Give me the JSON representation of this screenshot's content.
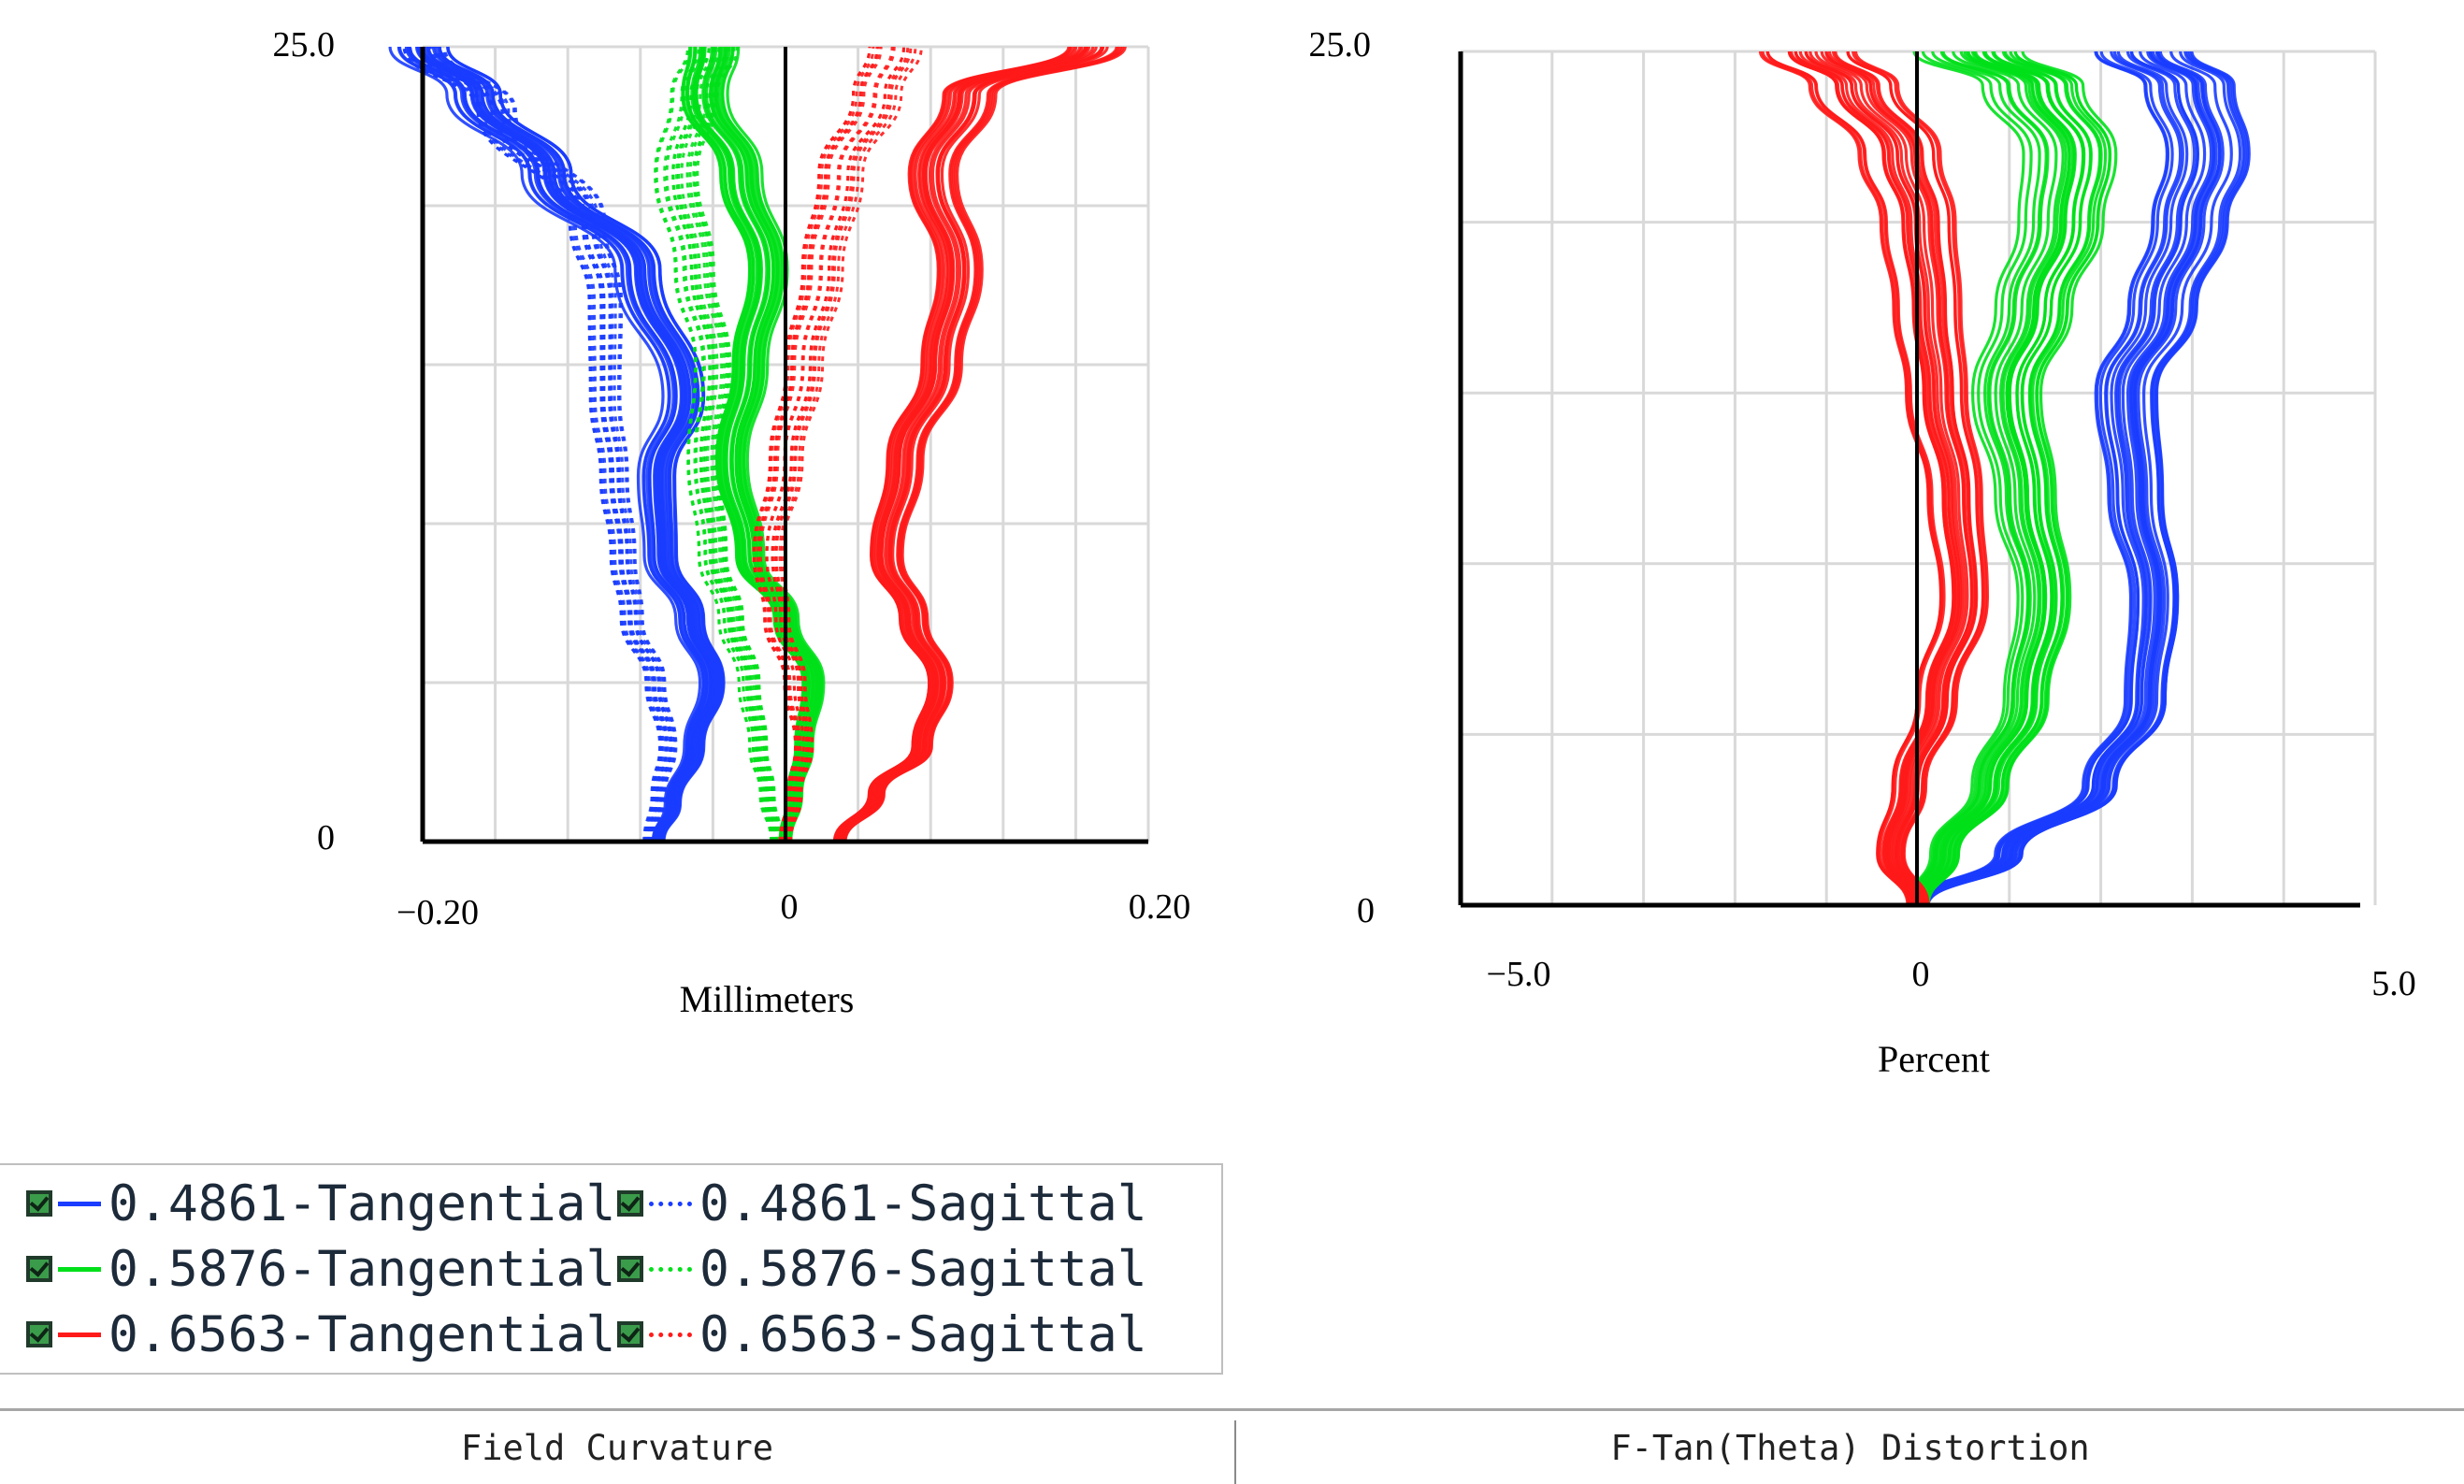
{
  "chart_data": [
    {
      "type": "line",
      "title": "",
      "xlabel": "Millimeters",
      "ylabel": "",
      "xlim": [
        -0.2,
        0.2
      ],
      "ylim": [
        0,
        25.0
      ],
      "x_tick_labels": [
        "−0.20",
        "0",
        "0.20"
      ],
      "y_tick_labels": [
        "25.0",
        "0"
      ],
      "grid": true,
      "series": [
        {
          "color": "#1a3cff",
          "style": "solid",
          "x": [
            -0.07,
            -0.062,
            -0.05,
            -0.04,
            -0.052,
            -0.068,
            -0.07,
            -0.055,
            -0.08,
            -0.13,
            -0.17,
            -0.2
          ],
          "y": [
            0,
            1.2,
            3.0,
            5.0,
            7.0,
            9.0,
            11.5,
            14.0,
            18.0,
            21.0,
            23.5,
            25.0
          ]
        },
        {
          "color": "#1a3cff",
          "style": "dotted",
          "x": [
            -0.075,
            -0.07,
            -0.065,
            -0.072,
            -0.085,
            -0.09,
            -0.095,
            -0.1,
            -0.1,
            -0.11,
            -0.16,
            -0.2
          ],
          "y": [
            0,
            1.5,
            3.0,
            5.0,
            7.0,
            9.0,
            11.5,
            14.0,
            17.0,
            19.5,
            23.0,
            25.0
          ]
        },
        {
          "color": "#00e01a",
          "style": "solid",
          "x": [
            0.0,
            0.005,
            0.01,
            0.015,
            0.0,
            -0.02,
            -0.03,
            -0.02,
            -0.01,
            -0.025,
            -0.045,
            -0.04
          ],
          "y": [
            0,
            1.5,
            3.0,
            5.0,
            7.0,
            9.0,
            12.0,
            15.0,
            18.0,
            21.0,
            23.5,
            25.0
          ]
        },
        {
          "color": "#00e01a",
          "style": "dotted",
          "x": [
            -0.005,
            -0.01,
            -0.015,
            -0.02,
            -0.03,
            -0.04,
            -0.045,
            -0.04,
            -0.05,
            -0.06,
            -0.05,
            -0.04
          ],
          "y": [
            0,
            1.5,
            3.0,
            5.0,
            7.0,
            9.0,
            12.0,
            15.0,
            18.0,
            21.0,
            23.5,
            25.0
          ]
        },
        {
          "color": "#ff1a1a",
          "style": "solid",
          "x": [
            0.03,
            0.05,
            0.075,
            0.085,
            0.07,
            0.055,
            0.065,
            0.085,
            0.095,
            0.08,
            0.1,
            0.17
          ],
          "y": [
            0,
            1.5,
            3.0,
            5.0,
            7.0,
            9.0,
            12.0,
            15.0,
            18.0,
            21.0,
            23.5,
            25.0
          ]
        },
        {
          "color": "#ff1a1a",
          "style": "dotted",
          "x": [
            0.0,
            0.005,
            0.01,
            0.005,
            -0.005,
            -0.01,
            0.0,
            0.01,
            0.02,
            0.03,
            0.05,
            0.06
          ],
          "y": [
            0,
            1.5,
            3.0,
            5.0,
            7.0,
            9.0,
            12.0,
            15.0,
            18.0,
            21.0,
            23.5,
            25.0
          ]
        }
      ]
    },
    {
      "type": "line",
      "title": "",
      "xlabel": "Percent",
      "ylabel": "",
      "xlim": [
        -5.0,
        5.0
      ],
      "ylim": [
        0,
        25.0
      ],
      "x_tick_labels": [
        "−5.0",
        "0",
        "5.0"
      ],
      "y_tick_labels": [
        "25.0",
        "0"
      ],
      "grid": true,
      "series": [
        {
          "color": "#1a3cff",
          "style": "solid",
          "x": [
            0.0,
            1.0,
            2.0,
            2.5,
            2.6,
            2.4,
            2.3,
            2.7,
            3.0,
            3.2,
            3.0,
            2.5
          ],
          "y": [
            0,
            1.5,
            3.5,
            6.0,
            9.0,
            12.0,
            15.0,
            17.5,
            20.0,
            22.0,
            24.0,
            25.0
          ]
        },
        {
          "color": "#00e01a",
          "style": "solid",
          "x": [
            0.0,
            0.3,
            0.8,
            1.2,
            1.4,
            1.2,
            1.0,
            1.3,
            1.6,
            1.7,
            1.3,
            0.6
          ],
          "y": [
            0,
            1.5,
            3.5,
            6.0,
            9.0,
            12.0,
            15.0,
            17.5,
            20.0,
            22.0,
            24.0,
            25.0
          ]
        },
        {
          "color": "#ff1a1a",
          "style": "solid",
          "x": [
            0.0,
            -0.3,
            -0.1,
            0.2,
            0.5,
            0.4,
            0.2,
            0.1,
            0.0,
            -0.2,
            -0.7,
            -1.2
          ],
          "y": [
            0,
            1.5,
            3.5,
            6.0,
            9.0,
            12.0,
            15.0,
            17.5,
            20.0,
            22.0,
            24.0,
            25.0
          ]
        }
      ]
    }
  ],
  "legend": {
    "items": [
      {
        "label": "0.4861-Tangential",
        "color": "#1a3cff",
        "style": "solid"
      },
      {
        "label": "0.4861-Sagittal",
        "color": "#1a3cff",
        "style": "dotted"
      },
      {
        "label": "0.5876-Tangential",
        "color": "#00e01a",
        "style": "solid"
      },
      {
        "label": "0.5876-Sagittal",
        "color": "#00e01a",
        "style": "dotted"
      },
      {
        "label": "0.6563-Tangential",
        "color": "#ff1a1a",
        "style": "solid"
      },
      {
        "label": "0.6563-Sagittal",
        "color": "#ff1a1a",
        "style": "dotted"
      }
    ]
  },
  "tabs": [
    {
      "label": "Field Curvature"
    },
    {
      "label": "F-Tan(Theta) Distortion"
    }
  ]
}
